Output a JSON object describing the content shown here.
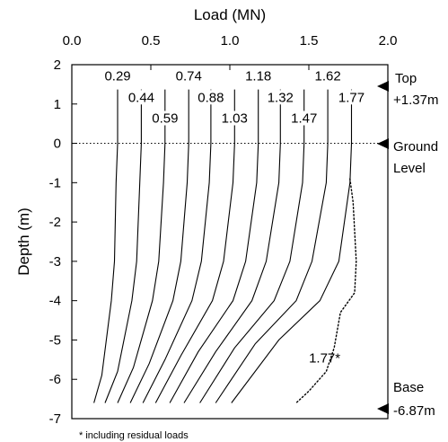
{
  "chart_data": {
    "type": "line",
    "title": "",
    "xlabel": "Load (MN)",
    "ylabel": "Depth (m)",
    "xlim": [
      0.0,
      2.0
    ],
    "ylim": [
      -7,
      2
    ],
    "x_ticks": [
      "0.0",
      "0.5",
      "1.0",
      "1.5",
      "2.0"
    ],
    "y_ticks": [
      "2",
      "1",
      "0",
      "-1",
      "-2",
      "-3",
      "-4",
      "-5",
      "-6",
      "-7"
    ],
    "axis_position": "top",
    "grid": false,
    "ground_line": {
      "depth": 0,
      "style": "dotted"
    },
    "series": [
      {
        "name": "0.29",
        "label_at": [
          0.29,
          1.62
        ],
        "points": [
          [
            0.29,
            1.37
          ],
          [
            0.29,
            0.0
          ],
          [
            0.28,
            -1.0
          ],
          [
            0.27,
            -3.0
          ],
          [
            0.25,
            -4.0
          ],
          [
            0.19,
            -5.9
          ],
          [
            0.14,
            -6.6
          ]
        ]
      },
      {
        "name": "0.44",
        "label_at": [
          0.44,
          1.08
        ],
        "points": [
          [
            0.44,
            1.37
          ],
          [
            0.44,
            0.0
          ],
          [
            0.43,
            -1.0
          ],
          [
            0.41,
            -3.0
          ],
          [
            0.38,
            -4.0
          ],
          [
            0.29,
            -5.8
          ],
          [
            0.21,
            -6.6
          ]
        ]
      },
      {
        "name": "0.59",
        "label_at": [
          0.59,
          0.55
        ],
        "points": [
          [
            0.59,
            1.37
          ],
          [
            0.59,
            0.0
          ],
          [
            0.58,
            -1.0
          ],
          [
            0.55,
            -3.0
          ],
          [
            0.51,
            -4.0
          ],
          [
            0.39,
            -5.7
          ],
          [
            0.29,
            -6.6
          ]
        ]
      },
      {
        "name": "0.74",
        "label_at": [
          0.74,
          1.62
        ],
        "points": [
          [
            0.74,
            1.37
          ],
          [
            0.74,
            0.0
          ],
          [
            0.73,
            -1.0
          ],
          [
            0.69,
            -3.0
          ],
          [
            0.64,
            -4.0
          ],
          [
            0.49,
            -5.6
          ],
          [
            0.37,
            -6.6
          ]
        ]
      },
      {
        "name": "0.88",
        "label_at": [
          0.88,
          1.08
        ],
        "points": [
          [
            0.88,
            1.37
          ],
          [
            0.88,
            0.0
          ],
          [
            0.87,
            -1.0
          ],
          [
            0.82,
            -3.0
          ],
          [
            0.76,
            -4.0
          ],
          [
            0.59,
            -5.5
          ],
          [
            0.45,
            -6.6
          ]
        ]
      },
      {
        "name": "1.03",
        "label_at": [
          1.03,
          0.55
        ],
        "points": [
          [
            1.03,
            1.37
          ],
          [
            1.03,
            0.0
          ],
          [
            1.02,
            -1.0
          ],
          [
            0.96,
            -3.0
          ],
          [
            0.89,
            -4.0
          ],
          [
            0.69,
            -5.4
          ],
          [
            0.53,
            -6.6
          ]
        ]
      },
      {
        "name": "1.18",
        "label_at": [
          1.18,
          1.62
        ],
        "points": [
          [
            1.18,
            1.37
          ],
          [
            1.18,
            0.0
          ],
          [
            1.17,
            -1.0
          ],
          [
            1.1,
            -3.0
          ],
          [
            1.02,
            -4.0
          ],
          [
            0.8,
            -5.3
          ],
          [
            0.62,
            -6.6
          ]
        ]
      },
      {
        "name": "1.32",
        "label_at": [
          1.32,
          1.08
        ],
        "points": [
          [
            1.32,
            1.37
          ],
          [
            1.32,
            0.0
          ],
          [
            1.31,
            -1.0
          ],
          [
            1.23,
            -3.0
          ],
          [
            1.14,
            -4.0
          ],
          [
            0.91,
            -5.3
          ],
          [
            0.71,
            -6.6
          ]
        ]
      },
      {
        "name": "1.47",
        "label_at": [
          1.47,
          0.55
        ],
        "points": [
          [
            1.47,
            1.37
          ],
          [
            1.47,
            0.0
          ],
          [
            1.46,
            -1.0
          ],
          [
            1.38,
            -3.0
          ],
          [
            1.28,
            -4.0
          ],
          [
            1.03,
            -5.2
          ],
          [
            0.81,
            -6.6
          ]
        ]
      },
      {
        "name": "1.62",
        "label_at": [
          1.62,
          1.62
        ],
        "points": [
          [
            1.62,
            1.37
          ],
          [
            1.62,
            0.0
          ],
          [
            1.61,
            -1.0
          ],
          [
            1.52,
            -3.0
          ],
          [
            1.42,
            -4.0
          ],
          [
            1.16,
            -5.1
          ],
          [
            0.91,
            -6.6
          ]
        ]
      },
      {
        "name": "1.77",
        "label_at": [
          1.77,
          1.08
        ],
        "points": [
          [
            1.77,
            1.37
          ],
          [
            1.77,
            0.0
          ],
          [
            1.76,
            -1.0
          ],
          [
            1.69,
            -3.0
          ],
          [
            1.57,
            -4.0
          ],
          [
            1.31,
            -5.0
          ],
          [
            1.01,
            -6.6
          ]
        ]
      },
      {
        "name": "1.77*",
        "style": "dotted",
        "label_at": [
          1.6,
          -5.55
        ],
        "points": [
          [
            1.76,
            -0.9
          ],
          [
            1.78,
            -1.5
          ],
          [
            1.8,
            -3.0
          ],
          [
            1.79,
            -3.8
          ],
          [
            1.7,
            -4.3
          ],
          [
            1.66,
            -5.2
          ],
          [
            1.61,
            -5.8
          ],
          [
            1.5,
            -6.3
          ],
          [
            1.42,
            -6.6
          ]
        ]
      }
    ],
    "annotations": [
      {
        "text": "Top",
        "depth": 1.37
      },
      {
        "text": "+1.37m",
        "depth": 1.37
      },
      {
        "text": "Ground",
        "depth": 0
      },
      {
        "text": "Level",
        "depth": 0
      },
      {
        "text": "Base",
        "depth": -6.87
      },
      {
        "text": "-6.87m",
        "depth": -6.87
      }
    ],
    "footnote": "* including residual loads"
  }
}
